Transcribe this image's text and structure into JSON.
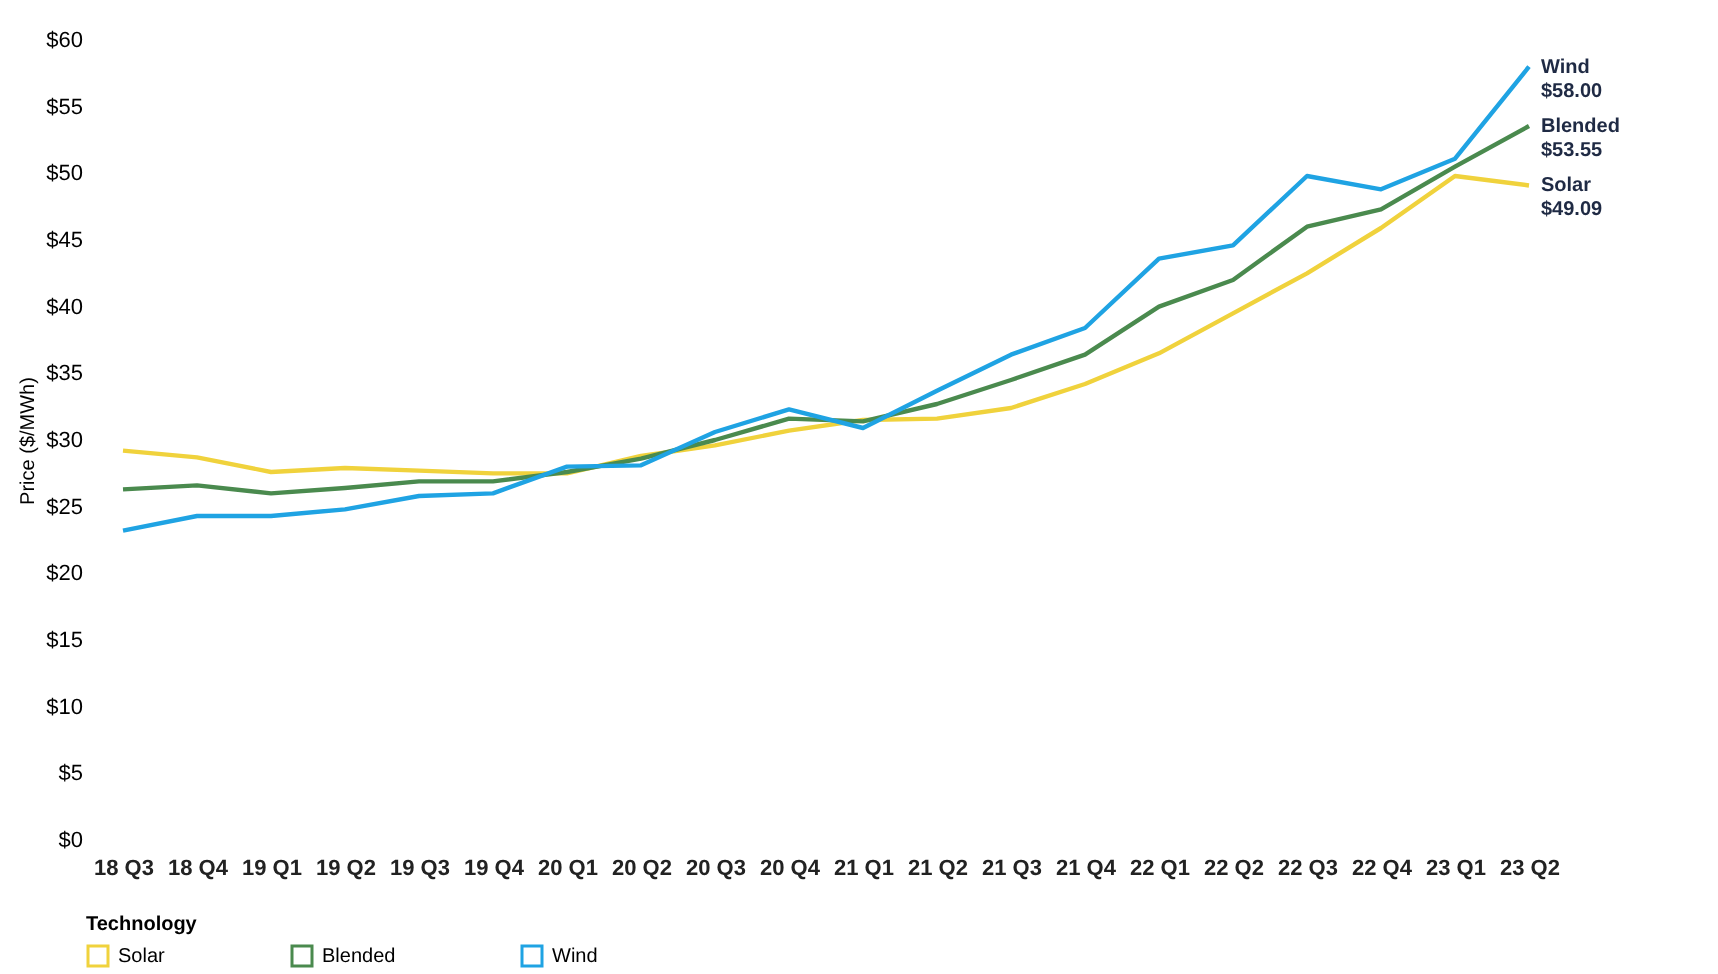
{
  "chart_data": {
    "type": "line",
    "ylabel": "Price ($/MWh)",
    "legend_title": "Technology",
    "legend": "bottom",
    "grid": false,
    "marker": "none",
    "line_style": "solid",
    "categories": [
      "18 Q3",
      "18 Q4",
      "19 Q1",
      "19 Q2",
      "19 Q3",
      "19 Q4",
      "20 Q1",
      "20 Q2",
      "20 Q3",
      "20 Q4",
      "21 Q1",
      "21 Q2",
      "21 Q3",
      "21 Q4",
      "22 Q1",
      "22 Q2",
      "22 Q3",
      "22 Q4",
      "23 Q1",
      "23 Q2"
    ],
    "ylim": [
      0,
      60
    ],
    "yticks": [
      {
        "value": 0,
        "label": "$0"
      },
      {
        "value": 5,
        "label": "$5"
      },
      {
        "value": 10,
        "label": "$10"
      },
      {
        "value": 15,
        "label": "$15"
      },
      {
        "value": 20,
        "label": "$20"
      },
      {
        "value": 25,
        "label": "$25"
      },
      {
        "value": 30,
        "label": "$30"
      },
      {
        "value": 35,
        "label": "$35"
      },
      {
        "value": 40,
        "label": "$40"
      },
      {
        "value": 45,
        "label": "$45"
      },
      {
        "value": 50,
        "label": "$50"
      },
      {
        "value": 55,
        "label": "$55"
      },
      {
        "value": 60,
        "label": "$60"
      }
    ],
    "series": [
      {
        "name": "Solar",
        "color": "#f0d23c",
        "values": [
          29.2,
          28.7,
          27.6,
          27.9,
          27.7,
          27.5,
          27.5,
          28.8,
          29.6,
          30.7,
          31.5,
          31.6,
          32.4,
          34.2,
          36.5,
          39.5,
          42.5,
          45.9,
          49.8,
          49.09
        ]
      },
      {
        "name": "Blended",
        "color": "#4a8a4e",
        "values": [
          26.3,
          26.6,
          26.0,
          26.4,
          26.9,
          26.9,
          27.6,
          28.6,
          30.0,
          31.6,
          31.4,
          32.7,
          34.5,
          36.4,
          40.0,
          42.0,
          46.0,
          47.3,
          50.5,
          53.55
        ]
      },
      {
        "name": "Wind",
        "color": "#1fa3e3",
        "values": [
          23.2,
          24.3,
          24.3,
          24.8,
          25.8,
          26.0,
          28.0,
          28.1,
          30.6,
          32.3,
          30.9,
          33.7,
          36.4,
          38.4,
          43.6,
          44.6,
          49.8,
          48.8,
          51.1,
          58.0
        ]
      }
    ],
    "annotations": [
      {
        "text": "Wind\n$58.00",
        "x": "23 Q2",
        "y": 58.0
      },
      {
        "text": "Blended\n$53.55",
        "x": "23 Q2",
        "y": 53.55
      },
      {
        "text": "Solar\n$49.09",
        "x": "23 Q2",
        "y": 49.09
      }
    ]
  }
}
